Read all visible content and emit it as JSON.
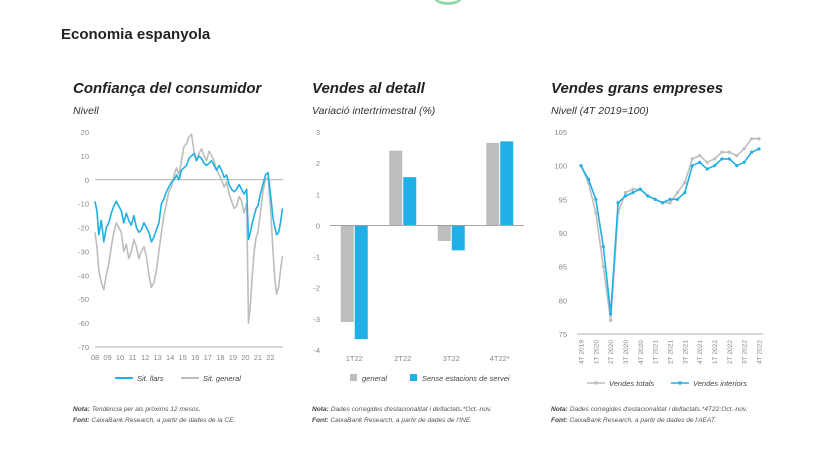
{
  "page_title": "Economia espanyola",
  "colors": {
    "blue": "#1eb0e6",
    "gray": "#bdbdbd",
    "axis": "#999999",
    "tick_text": "#888888"
  },
  "panels": [
    {
      "title": "Confiança del consumidor",
      "subtitle": "Nivell",
      "note_label": "Nota:",
      "note_text": "Tendència per als pròxims 12 mesos.",
      "source_label": "Font:",
      "source_text": "CaixaBank Research, a partir de dades de la CE."
    },
    {
      "title": "Vendes al detall",
      "subtitle": "Variació intertrimestral (%)",
      "note_label": "Nota:",
      "note_text": "Dades corregides d'estacionalitat i deflactats.*Oct.-nov.",
      "source_label": "Font:",
      "source_text": "CaixaBank Research, a partir de dades de l'INE."
    },
    {
      "title": "Vendes grans empreses",
      "subtitle": "Nivell (4T 2019=100)",
      "note_label": "Nota:",
      "note_text": "Dades corregides d'estacionalitat i deflactats.*4T22:Oct.-nov.",
      "source_label": "Font:",
      "source_text": "CaixaBank Research, a partir de dades de l'AEAT."
    }
  ],
  "chart_data": [
    {
      "type": "line",
      "ylim": [
        -70,
        20
      ],
      "yticks": [
        20,
        10,
        0,
        -10,
        -20,
        -30,
        -40,
        -50,
        -60,
        -70
      ],
      "xlim": [
        2008,
        2023
      ],
      "xticks": [
        {
          "x": 2008,
          "label": "08"
        },
        {
          "x": 2009,
          "label": "09"
        },
        {
          "x": 2010,
          "label": "10"
        },
        {
          "x": 2011,
          "label": "11"
        },
        {
          "x": 2012,
          "label": "12"
        },
        {
          "x": 2013,
          "label": "13"
        },
        {
          "x": 2014,
          "label": "14"
        },
        {
          "x": 2015,
          "label": "15"
        },
        {
          "x": 2016,
          "label": "16"
        },
        {
          "x": 2017,
          "label": "17"
        },
        {
          "x": 2018,
          "label": "18"
        },
        {
          "x": 2019,
          "label": "19"
        },
        {
          "x": 2020,
          "label": "20"
        },
        {
          "x": 2021,
          "label": "21"
        },
        {
          "x": 2022,
          "label": "22"
        }
      ],
      "series": [
        {
          "name": "Sit. llars",
          "color": "#1eb0e6",
          "points": [
            [
              2008.0,
              -9
            ],
            [
              2008.15,
              -13
            ],
            [
              2008.3,
              -23
            ],
            [
              2008.5,
              -17
            ],
            [
              2008.7,
              -26
            ],
            [
              2008.9,
              -20
            ],
            [
              2009.1,
              -18
            ],
            [
              2009.3,
              -14
            ],
            [
              2009.5,
              -11
            ],
            [
              2009.7,
              -9
            ],
            [
              2009.9,
              -11
            ],
            [
              2010.1,
              -13
            ],
            [
              2010.3,
              -18
            ],
            [
              2010.5,
              -14
            ],
            [
              2010.7,
              -17
            ],
            [
              2010.9,
              -19
            ],
            [
              2011.1,
              -15
            ],
            [
              2011.3,
              -20
            ],
            [
              2011.5,
              -22
            ],
            [
              2011.7,
              -21
            ],
            [
              2011.9,
              -18
            ],
            [
              2012.1,
              -20
            ],
            [
              2012.3,
              -22
            ],
            [
              2012.5,
              -26
            ],
            [
              2012.7,
              -24
            ],
            [
              2012.9,
              -21
            ],
            [
              2013.1,
              -18
            ],
            [
              2013.3,
              -10
            ],
            [
              2013.5,
              -8
            ],
            [
              2013.7,
              -5
            ],
            [
              2013.9,
              -3
            ],
            [
              2014.1,
              -1
            ],
            [
              2014.3,
              0
            ],
            [
              2014.5,
              2
            ],
            [
              2014.7,
              0
            ],
            [
              2014.9,
              4
            ],
            [
              2015.1,
              5
            ],
            [
              2015.3,
              6
            ],
            [
              2015.5,
              9
            ],
            [
              2015.7,
              10
            ],
            [
              2015.9,
              11
            ],
            [
              2016.1,
              8
            ],
            [
              2016.3,
              10
            ],
            [
              2016.5,
              9
            ],
            [
              2016.7,
              7
            ],
            [
              2016.9,
              6
            ],
            [
              2017.1,
              7
            ],
            [
              2017.3,
              8
            ],
            [
              2017.5,
              6
            ],
            [
              2017.7,
              4
            ],
            [
              2017.9,
              6
            ],
            [
              2018.1,
              4
            ],
            [
              2018.3,
              1
            ],
            [
              2018.5,
              2
            ],
            [
              2018.7,
              -2
            ],
            [
              2018.9,
              -4
            ],
            [
              2019.1,
              -5
            ],
            [
              2019.3,
              -4
            ],
            [
              2019.5,
              -2
            ],
            [
              2019.7,
              -4
            ],
            [
              2019.9,
              -6
            ],
            [
              2020.1,
              -4
            ],
            [
              2020.25,
              -25
            ],
            [
              2020.4,
              -22
            ],
            [
              2020.55,
              -18
            ],
            [
              2020.7,
              -15
            ],
            [
              2020.85,
              -12
            ],
            [
              2021.0,
              -11
            ],
            [
              2021.2,
              -6
            ],
            [
              2021.4,
              -2
            ],
            [
              2021.6,
              2
            ],
            [
              2021.8,
              3
            ],
            [
              2022.0,
              -6
            ],
            [
              2022.2,
              -16
            ],
            [
              2022.35,
              -20
            ],
            [
              2022.5,
              -23
            ],
            [
              2022.65,
              -22
            ],
            [
              2022.8,
              -18
            ],
            [
              2022.95,
              -12
            ]
          ]
        },
        {
          "name": "Sit. general",
          "color": "#bdbdbd",
          "points": [
            [
              2008.0,
              -22
            ],
            [
              2008.15,
              -28
            ],
            [
              2008.3,
              -38
            ],
            [
              2008.5,
              -43
            ],
            [
              2008.7,
              -46
            ],
            [
              2008.9,
              -40
            ],
            [
              2009.1,
              -35
            ],
            [
              2009.3,
              -28
            ],
            [
              2009.5,
              -22
            ],
            [
              2009.7,
              -18
            ],
            [
              2009.9,
              -20
            ],
            [
              2010.1,
              -22
            ],
            [
              2010.3,
              -30
            ],
            [
              2010.5,
              -27
            ],
            [
              2010.7,
              -33
            ],
            [
              2010.9,
              -30
            ],
            [
              2011.1,
              -25
            ],
            [
              2011.3,
              -28
            ],
            [
              2011.5,
              -33
            ],
            [
              2011.7,
              -30
            ],
            [
              2011.9,
              -28
            ],
            [
              2012.1,
              -32
            ],
            [
              2012.3,
              -40
            ],
            [
              2012.5,
              -45
            ],
            [
              2012.7,
              -43
            ],
            [
              2012.9,
              -38
            ],
            [
              2013.1,
              -30
            ],
            [
              2013.3,
              -22
            ],
            [
              2013.5,
              -15
            ],
            [
              2013.7,
              -10
            ],
            [
              2013.9,
              -5
            ],
            [
              2014.1,
              -3
            ],
            [
              2014.3,
              2
            ],
            [
              2014.5,
              5
            ],
            [
              2014.7,
              2
            ],
            [
              2014.9,
              8
            ],
            [
              2015.1,
              14
            ],
            [
              2015.3,
              15
            ],
            [
              2015.5,
              18
            ],
            [
              2015.7,
              19
            ],
            [
              2015.9,
              12
            ],
            [
              2016.1,
              8
            ],
            [
              2016.3,
              11
            ],
            [
              2016.5,
              13
            ],
            [
              2016.7,
              10
            ],
            [
              2016.9,
              8
            ],
            [
              2017.1,
              12
            ],
            [
              2017.3,
              10
            ],
            [
              2017.5,
              8
            ],
            [
              2017.7,
              4
            ],
            [
              2017.9,
              2
            ],
            [
              2018.1,
              0
            ],
            [
              2018.3,
              -3
            ],
            [
              2018.5,
              -1
            ],
            [
              2018.7,
              -6
            ],
            [
              2018.9,
              -9
            ],
            [
              2019.1,
              -12
            ],
            [
              2019.3,
              -11
            ],
            [
              2019.5,
              -7
            ],
            [
              2019.7,
              -9
            ],
            [
              2019.9,
              -14
            ],
            [
              2020.1,
              -10
            ],
            [
              2020.25,
              -60
            ],
            [
              2020.4,
              -52
            ],
            [
              2020.55,
              -40
            ],
            [
              2020.7,
              -30
            ],
            [
              2020.85,
              -24
            ],
            [
              2021.0,
              -22
            ],
            [
              2021.2,
              -14
            ],
            [
              2021.4,
              -5
            ],
            [
              2021.6,
              0
            ],
            [
              2021.8,
              1
            ],
            [
              2022.0,
              -12
            ],
            [
              2022.2,
              -30
            ],
            [
              2022.35,
              -42
            ],
            [
              2022.5,
              -48
            ],
            [
              2022.65,
              -45
            ],
            [
              2022.8,
              -38
            ],
            [
              2022.95,
              -32
            ]
          ]
        }
      ],
      "legend": [
        "Sit. llars",
        "Sit. general"
      ]
    },
    {
      "type": "bar",
      "categories": [
        "1T22",
        "2T22",
        "3T22",
        "4T22*"
      ],
      "ylim": [
        -4,
        3
      ],
      "yticks": [
        3,
        2,
        1,
        0,
        -1,
        -2,
        -3,
        -4
      ],
      "series": [
        {
          "name": "general",
          "color": "#bdbdbd",
          "values": [
            -3.1,
            2.4,
            -0.5,
            2.65
          ]
        },
        {
          "name": "Sense estacions de servei",
          "color": "#1eb0e6",
          "values": [
            -3.65,
            1.55,
            -0.8,
            2.7
          ]
        }
      ],
      "legend": [
        "general",
        "Sense estacions de servei"
      ]
    },
    {
      "type": "line",
      "ylim": [
        75,
        105
      ],
      "yticks": [
        105,
        100,
        95,
        90,
        85,
        80,
        75
      ],
      "categories": [
        "4T 2019",
        "",
        "1T 2020",
        "",
        "2T 2020",
        "",
        "3T 2020",
        "",
        "4T 2020",
        "",
        "1T 2021",
        "",
        "2T 2021",
        "",
        "3T 2021",
        "",
        "4T 2021",
        "",
        "1T 2022",
        "",
        "2T 2022",
        "",
        "3T 2022",
        "",
        "4T 2022"
      ],
      "series": [
        {
          "name": "Vendes totals",
          "color": "#bdbdbd",
          "values": [
            100,
            97.5,
            93,
            85,
            77,
            93,
            96,
            96.5,
            96.5,
            95.5,
            95,
            94.5,
            94.5,
            96,
            97.5,
            101,
            101.5,
            100.5,
            101,
            102,
            102,
            101.5,
            102.5,
            104,
            104
          ]
        },
        {
          "name": "Vendes interiors",
          "color": "#1eb0e6",
          "values": [
            100,
            98,
            95,
            88,
            78,
            94.5,
            95.5,
            96,
            96.5,
            95.5,
            95,
            94.5,
            95,
            95,
            96,
            100,
            100.5,
            99.5,
            100,
            101,
            101,
            100,
            100.5,
            102,
            102.5
          ]
        }
      ],
      "legend": [
        "Vendes totals",
        "Vendes interiors"
      ]
    }
  ]
}
